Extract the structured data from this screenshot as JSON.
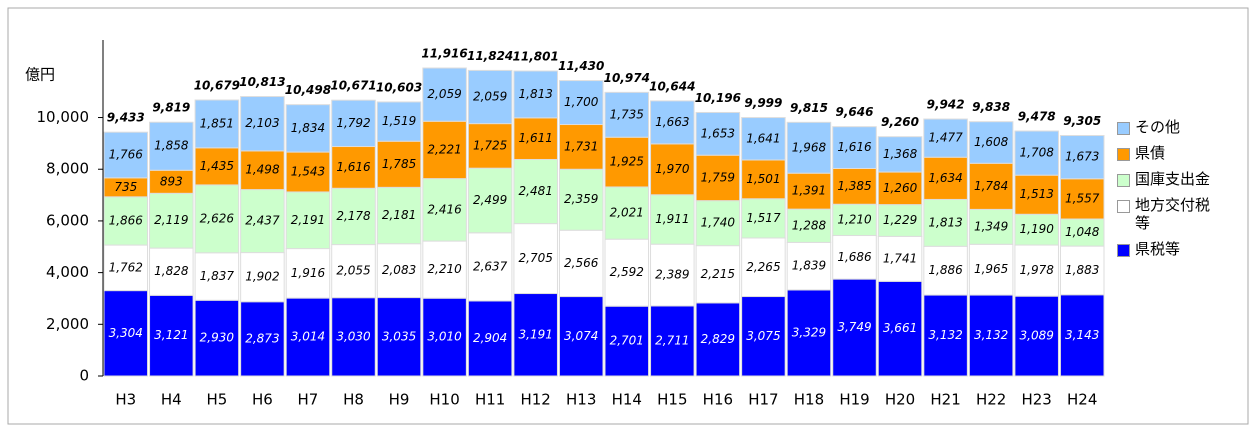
{
  "chart_data": {
    "type": "stacked_bar",
    "y_label": "億円",
    "categories": [
      "H3",
      "H4",
      "H5",
      "H6",
      "H7",
      "H8",
      "H9",
      "H10",
      "H11",
      "H12",
      "H13",
      "H14",
      "H15",
      "H16",
      "H17",
      "H18",
      "H19",
      "H20",
      "H21",
      "H22",
      "H23",
      "H24"
    ],
    "series": [
      {
        "name": "県税等",
        "color": "#0000ff",
        "label_color": "#ffffff",
        "values": [
          3304,
          3121,
          2930,
          2873,
          3014,
          3030,
          3035,
          3010,
          2904,
          3191,
          3074,
          2701,
          2711,
          2829,
          3075,
          3329,
          3749,
          3661,
          3132,
          3132,
          3089,
          3143
        ],
        "value_labels": [
          "3,304",
          "3,121",
          "2,930",
          "2,873",
          "3,014",
          "3,030",
          "3,035",
          "3,010",
          "2,904",
          "3,191",
          "3,074",
          "2,701",
          "2,711",
          "2,829",
          "3,075",
          "3,329",
          "3,749",
          "3,661",
          "3,132",
          "3,132",
          "3,089",
          "3,143"
        ]
      },
      {
        "name": "地方交付税等",
        "color": "#ffffff",
        "label_color": "#000000",
        "values": [
          1762,
          1828,
          1837,
          1902,
          1916,
          2055,
          2083,
          2210,
          2637,
          2705,
          2566,
          2592,
          2389,
          2215,
          2265,
          1839,
          1686,
          1741,
          1886,
          1965,
          1978,
          1883
        ],
        "value_labels": [
          "1,762",
          "1,828",
          "1,837",
          "1,902",
          "1,916",
          "2,055",
          "2,083",
          "2,210",
          "2,637",
          "2,705",
          "2,566",
          "2,592",
          "2,389",
          "2,215",
          "2,265",
          "1,839",
          "1,686",
          "1,741",
          "1,886",
          "1,965",
          "1,978",
          "1,883"
        ]
      },
      {
        "name": "国庫支出金",
        "color": "#ccffcc",
        "label_color": "#000000",
        "values": [
          1866,
          2119,
          2626,
          2437,
          2191,
          2178,
          2181,
          2416,
          2499,
          2481,
          2359,
          2021,
          1911,
          1740,
          1517,
          1288,
          1210,
          1229,
          1813,
          1349,
          1190,
          1048
        ],
        "value_labels": [
          "1,866",
          "2,119",
          "2,626",
          "2,437",
          "2,191",
          "2,178",
          "2,181",
          "2,416",
          "2,499",
          "2,481",
          "2,359",
          "2,021",
          "1,911",
          "1,740",
          "1,517",
          "1,288",
          "1,210",
          "1,229",
          "1,813",
          "1,349",
          "1,190",
          "1,048"
        ]
      },
      {
        "name": "県債",
        "color": "#ff9900",
        "label_color": "#000000",
        "values": [
          735,
          893,
          1435,
          1498,
          1543,
          1616,
          1785,
          2221,
          1725,
          1611,
          1731,
          1925,
          1970,
          1759,
          1501,
          1391,
          1385,
          1260,
          1634,
          1784,
          1513,
          1557
        ],
        "value_labels": [
          "735",
          "893",
          "1,435",
          "1,498",
          "1,543",
          "1,616",
          "1,785",
          "2,221",
          "1,725",
          "1,611",
          "1,731",
          "1,925",
          "1,970",
          "1,759",
          "1,501",
          "1,391",
          "1,385",
          "1,260",
          "1,634",
          "1,784",
          "1,513",
          "1,557"
        ]
      },
      {
        "name": "その他",
        "color": "#99ccff",
        "label_color": "#000000",
        "values": [
          1766,
          1858,
          1851,
          2103,
          1834,
          1792,
          1519,
          2059,
          2059,
          1813,
          1700,
          1735,
          1663,
          1653,
          1641,
          1968,
          1616,
          1368,
          1477,
          1608,
          1708,
          1673
        ],
        "value_labels": [
          "1,766",
          "1,858",
          "1,851",
          "2,103",
          "1,834",
          "1,792",
          "1,519",
          "2,059",
          "2,059",
          "1,813",
          "1,700",
          "1,735",
          "1,663",
          "1,653",
          "1,641",
          "1,968",
          "1,616",
          "1,368",
          "1,477",
          "1,608",
          "1,708",
          "1,673"
        ]
      }
    ],
    "totals": [
      9433,
      9819,
      10679,
      10813,
      10498,
      10671,
      10603,
      11916,
      11824,
      11801,
      11430,
      10974,
      10644,
      10196,
      9999,
      9815,
      9646,
      9260,
      9942,
      9838,
      9478,
      9305
    ],
    "total_labels": [
      "9,433",
      "9,819",
      "10,679",
      "10,813",
      "10,498",
      "10,671",
      "10,603",
      "11,916",
      "11,824",
      "11,801",
      "11,430",
      "10,974",
      "10,644",
      "10,196",
      "9,999",
      "9,815",
      "9,646",
      "9,260",
      "9,942",
      "9,838",
      "9,478",
      "9,305"
    ],
    "ylim": [
      0,
      13000
    ],
    "yticks": [
      0,
      {
        "value": 2000,
        "label": "2,000"
      },
      {
        "value": 4000,
        "label": "4,000"
      },
      {
        "value": 6000,
        "label": "6,000"
      },
      {
        "value": 8000,
        "label": "8,000"
      },
      {
        "value": 10000,
        "label": "10,000"
      }
    ],
    "grid": false,
    "legend": "right"
  }
}
